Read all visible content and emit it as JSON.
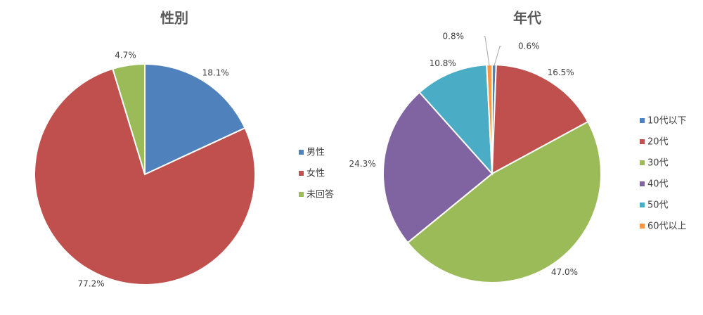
{
  "chart_data": [
    {
      "type": "pie",
      "title": "性別",
      "categories": [
        "男性",
        "女性",
        "未回答"
      ],
      "values": [
        18.1,
        77.2,
        4.7
      ],
      "value_labels": [
        "18.1%",
        "77.2%",
        "4.7%"
      ],
      "colors": [
        "#4f81bd",
        "#c0504d",
        "#9bbb59"
      ],
      "legend": "right"
    },
    {
      "type": "pie",
      "title": "年代",
      "categories": [
        "10代以下",
        "20代",
        "30代",
        "40代",
        "50代",
        "60代以上"
      ],
      "values": [
        0.6,
        16.5,
        47.0,
        24.3,
        10.8,
        0.8
      ],
      "value_labels": [
        "0.6%",
        "16.5%",
        "47.0%",
        "24.3%",
        "10.8%",
        "0.8%"
      ],
      "colors": [
        "#4f81bd",
        "#c0504d",
        "#9bbb59",
        "#8064a2",
        "#4bacc6",
        "#f79646"
      ],
      "legend": "right"
    }
  ]
}
